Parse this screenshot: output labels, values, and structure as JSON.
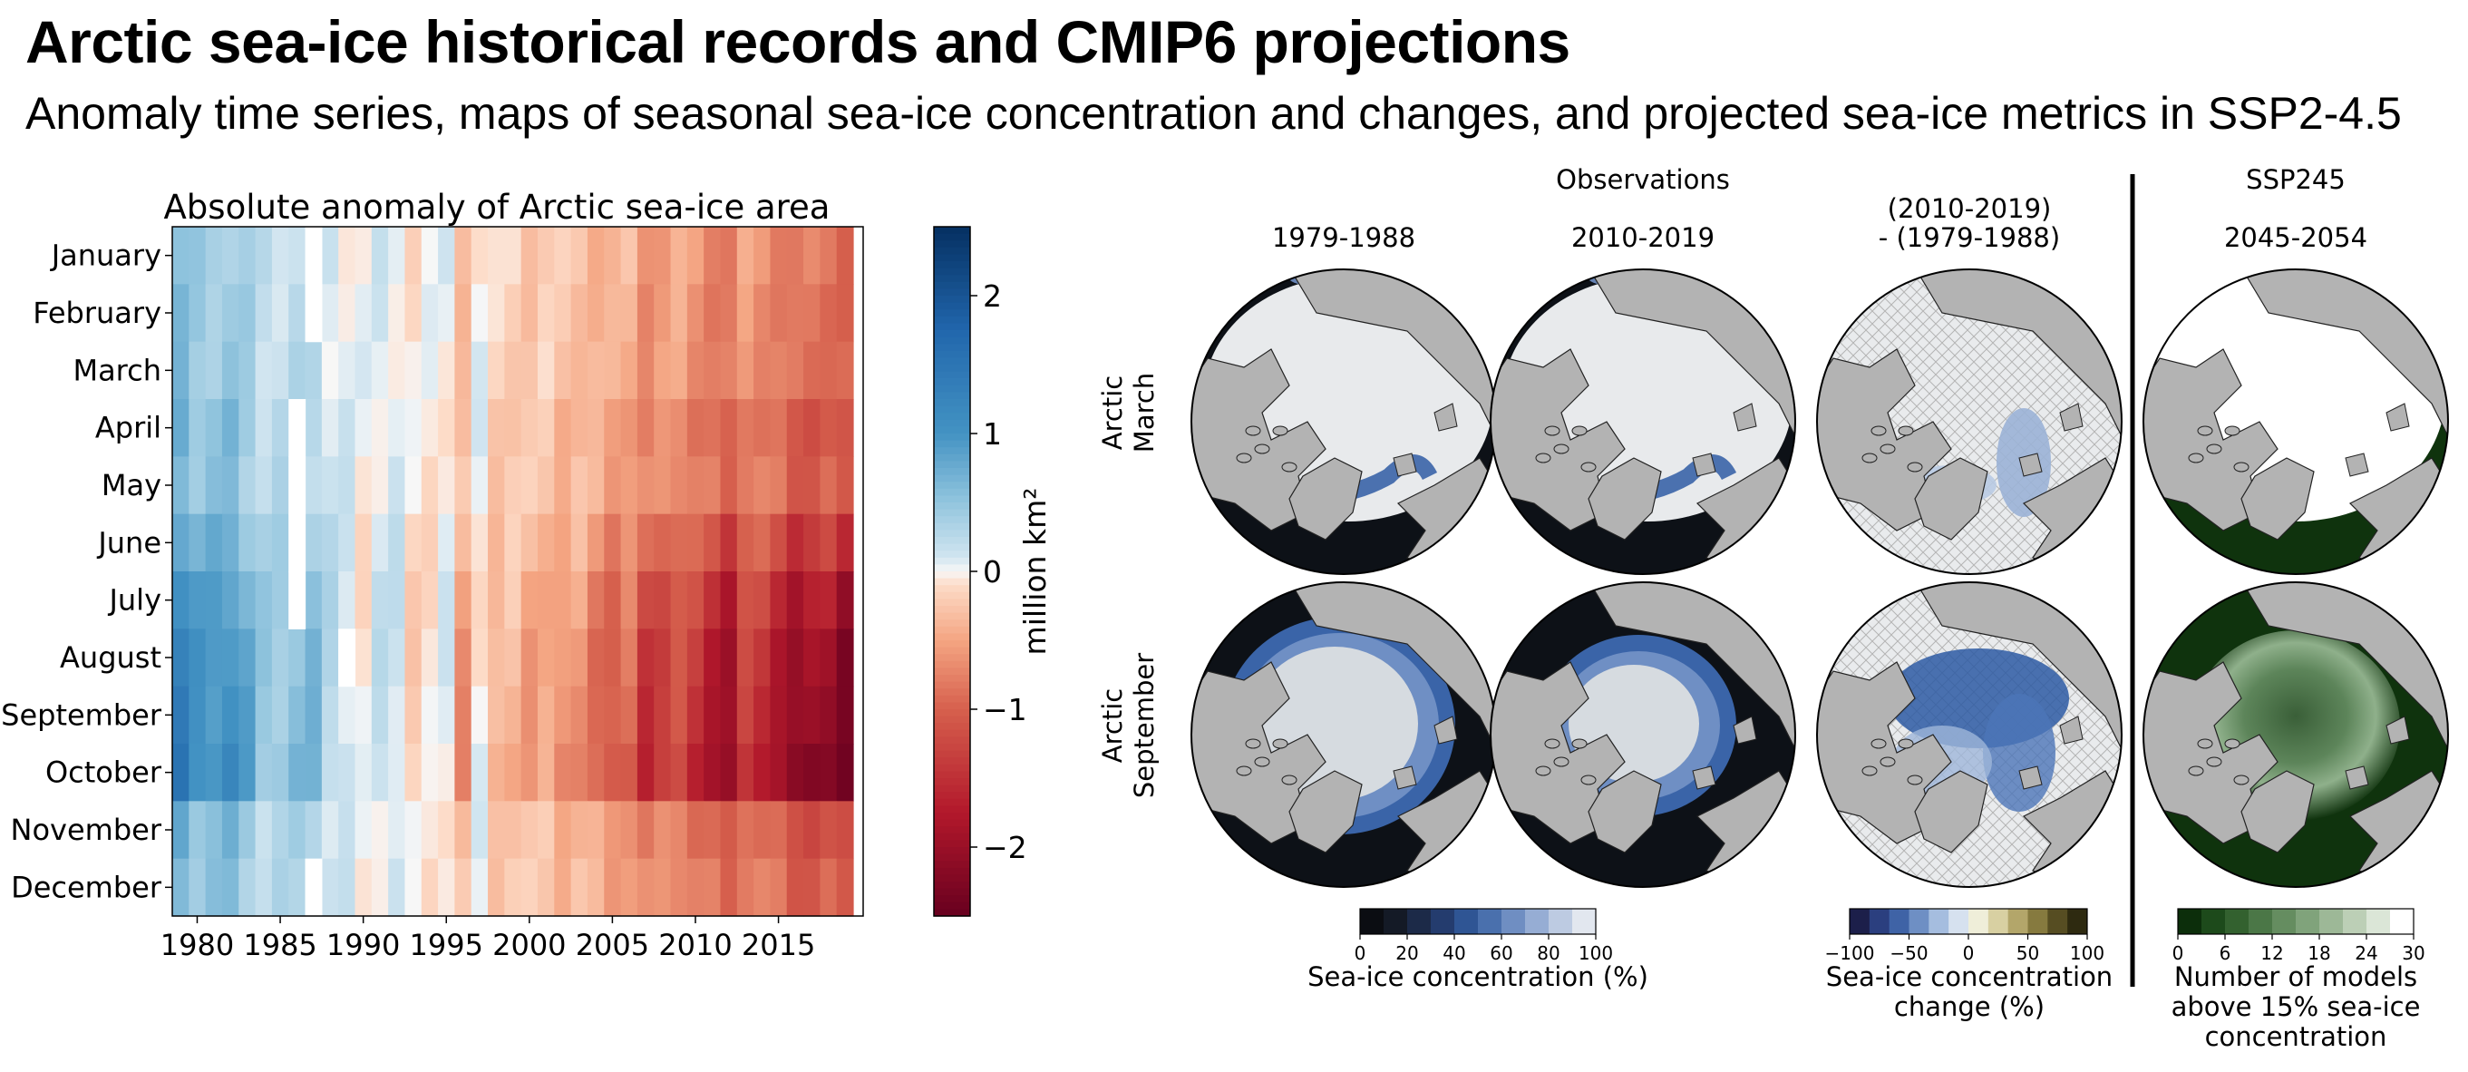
{
  "title": "Arctic sea-ice historical records and CMIP6 projections",
  "subtitle": "Anomaly time series, maps of seasonal sea-ice concentration and changes, and projected sea-ice metrics in SSP2-4.5",
  "chart_data": [
    {
      "type": "heatmap",
      "title": "Absolute anomaly of Arctic sea-ice area",
      "x_start": 1979,
      "x_end": 2019,
      "xticks": [
        "1980",
        "1985",
        "1990",
        "1995",
        "2000",
        "2005",
        "2010",
        "2015"
      ],
      "months": [
        "January",
        "February",
        "March",
        "April",
        "May",
        "June",
        "July",
        "August",
        "September",
        "October",
        "November",
        "December"
      ],
      "colorbar": {
        "label": "million km²",
        "ticks": [
          "2",
          "1",
          "0",
          "−1",
          "−2"
        ],
        "range": [
          -2.5,
          2.5
        ],
        "cmap": "RdBu"
      },
      "month_factors": [
        0.55,
        0.6,
        0.6,
        0.75,
        0.7,
        0.95,
        1.2,
        1.35,
        1.4,
        1.5,
        0.8,
        0.7
      ],
      "trend": {
        "start_value": 0.65,
        "end_value": -1.15
      },
      "year_offsets": [
        0.3,
        0.1,
        0.15,
        0.25,
        0.1,
        -0.1,
        -0.05,
        0.05,
        0.15,
        -0.05,
        -0.1,
        -0.2,
        0.0,
        0.05,
        -0.15,
        -0.05,
        0.1,
        -0.35,
        0.15,
        -0.1,
        0.0,
        -0.1,
        0.0,
        -0.1,
        0.0,
        -0.15,
        -0.25,
        -0.1,
        -0.45,
        -0.3,
        -0.15,
        -0.3,
        -0.45,
        -0.6,
        -0.1,
        -0.15,
        -0.3,
        -0.5,
        -0.4,
        -0.3,
        -0.5
      ]
    },
    {
      "type": "map-panel",
      "group_labels": {
        "observations": "Observations",
        "projection": "SSP245"
      },
      "columns": [
        "1979-1988",
        "2010-2019",
        "(2010-2019)",
        "- (1979-1988)",
        "2045-2054"
      ],
      "rows": [
        "Arctic",
        "March",
        "Arctic",
        "September"
      ],
      "colorbars": [
        {
          "name": "concentration",
          "ticks": [
            "0",
            "20",
            "40",
            "60",
            "80",
            "100"
          ],
          "label": "Sea-ice concentration (%)"
        },
        {
          "name": "change",
          "ticks": [
            "−100",
            "−50",
            "0",
            "50",
            "100"
          ],
          "label_lines": [
            "Sea-ice concentration",
            "change (%)"
          ]
        },
        {
          "name": "models",
          "ticks": [
            "0",
            "6",
            "12",
            "18",
            "24",
            "30"
          ],
          "label_lines": [
            "Number of models",
            "above 15% sea-ice",
            "concentration"
          ]
        }
      ]
    }
  ]
}
